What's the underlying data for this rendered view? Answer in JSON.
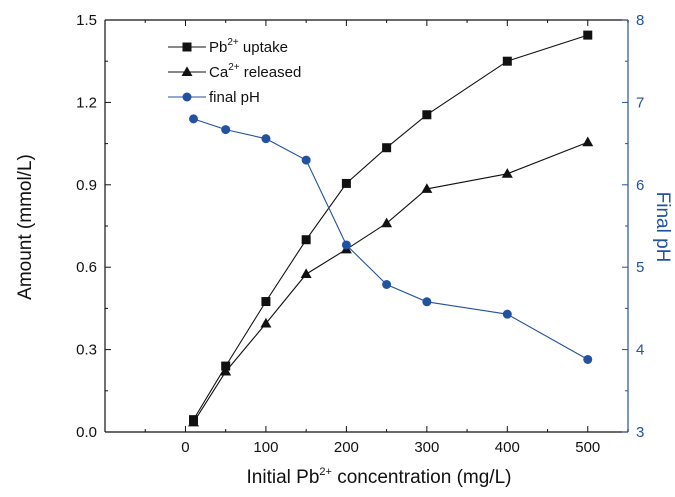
{
  "chart_data": {
    "type": "line",
    "title": "",
    "xlabel": {
      "pre": "Initial Pb",
      "sup": "2+",
      "post": " concentration (mg/L)"
    },
    "ylabel": "Amount (mmol/L)",
    "y2label": "Final pH",
    "xlim": [
      -100,
      550
    ],
    "ylim": [
      0,
      1.5
    ],
    "y2lim": [
      3,
      8
    ],
    "xticks": [
      0,
      100,
      200,
      300,
      400,
      500
    ],
    "yticks": [
      "0.0",
      "0.3",
      "0.6",
      "0.9",
      "1.2",
      "1.5"
    ],
    "y2ticks": [
      "3",
      "4",
      "5",
      "6",
      "7",
      "8"
    ],
    "legend_position": "top-left",
    "series": [
      {
        "legend": {
          "pre": "Pb",
          "sup": "2+",
          "post": " uptake"
        },
        "axis": "left",
        "marker": "square",
        "color": "#111111",
        "x": [
          10,
          50,
          100,
          150,
          200,
          250,
          300,
          400,
          500
        ],
        "y": [
          0.045,
          0.24,
          0.475,
          0.7,
          0.905,
          1.035,
          1.155,
          1.35,
          1.445
        ]
      },
      {
        "legend": {
          "pre": "Ca",
          "sup": "2+",
          "post": " released"
        },
        "axis": "left",
        "marker": "triangle",
        "color": "#111111",
        "x": [
          10,
          50,
          100,
          150,
          200,
          250,
          300,
          400,
          500
        ],
        "y": [
          0.035,
          0.22,
          0.395,
          0.575,
          0.665,
          0.76,
          0.885,
          0.94,
          1.055
        ]
      },
      {
        "legend": {
          "pre": "final pH",
          "sup": "",
          "post": ""
        },
        "axis": "right",
        "marker": "circle",
        "color": "#2352a0",
        "x": [
          10,
          50,
          100,
          150,
          200,
          250,
          300,
          400,
          500
        ],
        "y": [
          6.8,
          6.67,
          6.56,
          6.3,
          5.27,
          4.79,
          4.58,
          4.43,
          3.88
        ]
      }
    ]
  }
}
